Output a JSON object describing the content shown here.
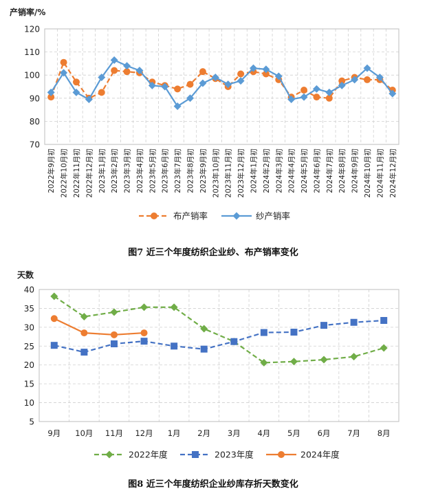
{
  "chart_data": [
    {
      "type": "line",
      "unit_label": "产销率/%",
      "ylim": [
        70,
        120
      ],
      "yticks": [
        70,
        80,
        90,
        100,
        110,
        120
      ],
      "grid": true,
      "legend_position": "bottom",
      "categories": [
        "2022年9月初",
        "2022年10月初",
        "2022年11月初",
        "2022年12月初",
        "2023年1月初",
        "2023年2月初",
        "2023年3月初",
        "2023年4月初",
        "2023年5月初",
        "2023年6月初",
        "2023年7月初",
        "2023年8月初",
        "2023年9月初",
        "2023年10月初",
        "2023年11月初",
        "2023年12月初",
        "2024年1月初",
        "2024年2月初",
        "2024年3月初",
        "2024年4月初",
        "2024年5月初",
        "2024年6月初",
        "2024年7月初",
        "2024年8月初",
        "2024年9月初",
        "2024年10月初",
        "2024年11月初",
        "2024年12月初"
      ],
      "series": [
        {
          "name": "布产销率",
          "color": "#ED7D31",
          "style": "dashed",
          "marker": "circle",
          "values": [
            90.5,
            105.5,
            97,
            90,
            92.5,
            102,
            101.5,
            101,
            97,
            95.5,
            94,
            96,
            101.5,
            98.5,
            95,
            100.5,
            101.5,
            100.5,
            98,
            90.5,
            93.5,
            90.5,
            90,
            97.5,
            99,
            98,
            98,
            93.5
          ]
        },
        {
          "name": "纱产销率",
          "color": "#5B9BD5",
          "style": "solid",
          "marker": "diamond",
          "values": [
            92.5,
            101,
            92.5,
            89.5,
            99,
            106.5,
            104,
            102,
            95.5,
            95,
            86.5,
            90,
            96.5,
            99,
            96,
            97.5,
            103,
            102.5,
            99.5,
            89.5,
            90.5,
            94,
            92.5,
            95.5,
            98,
            103,
            99,
            92
          ]
        }
      ],
      "caption": "图7   近三个年度纺织企业纱、布产销率变化"
    },
    {
      "type": "line",
      "unit_label": "天数",
      "ylim": [
        5,
        40
      ],
      "yticks": [
        5,
        10,
        15,
        20,
        25,
        30,
        35,
        40
      ],
      "grid": true,
      "legend_position": "bottom",
      "categories": [
        "9月",
        "10月",
        "11月",
        "12月",
        "1月",
        "2月",
        "3月",
        "4月",
        "5月",
        "6月",
        "7月",
        "8月"
      ],
      "series": [
        {
          "name": "2022年度",
          "color": "#70AD47",
          "style": "dashed",
          "marker": "diamond",
          "values": [
            38.2,
            32.8,
            34.0,
            35.3,
            35.3,
            29.6,
            26.2,
            20.6,
            20.9,
            21.4,
            22.2,
            24.5
          ]
        },
        {
          "name": "2023年度",
          "color": "#4472C4",
          "style": "dashed",
          "marker": "square",
          "values": [
            25.2,
            23.4,
            25.6,
            26.3,
            25.0,
            24.2,
            26.2,
            28.6,
            28.7,
            30.5,
            31.3,
            31.8
          ]
        },
        {
          "name": "2024年度",
          "color": "#ED7D31",
          "style": "solid",
          "marker": "circle",
          "values": [
            32.3,
            28.5,
            28.0,
            28.5,
            null,
            null,
            null,
            null,
            null,
            null,
            null,
            null
          ]
        }
      ],
      "caption": "图8   近三个年度纺织企业纱库存折天数变化"
    }
  ]
}
